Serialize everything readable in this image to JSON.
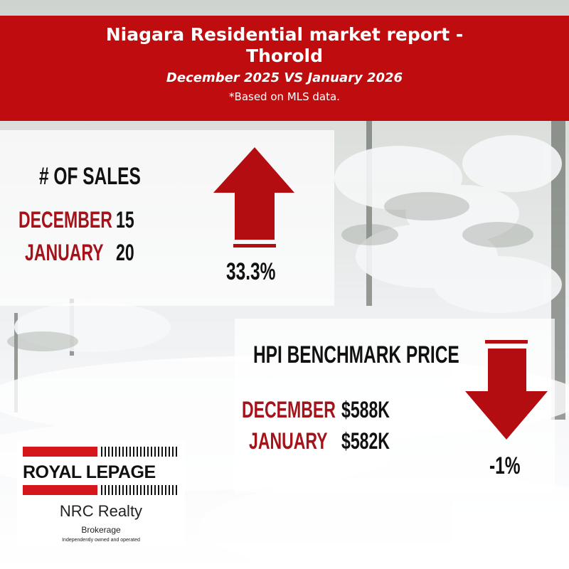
{
  "header": {
    "title_line1": "Niagara Residential market report -",
    "title_line2": "Thorold",
    "subtitle": "December 2025 VS January 2026",
    "note": "*Based on MLS data."
  },
  "sales": {
    "heading": "# OF SALES",
    "rows": [
      {
        "label": "DECEMBER",
        "value": "15"
      },
      {
        "label": "JANUARY",
        "value": "20"
      }
    ],
    "change": "33.3%",
    "direction": "up"
  },
  "hpi": {
    "heading": "HPI BENCHMARK PRICE",
    "rows": [
      {
        "label": "DECEMBER",
        "value": "$588K"
      },
      {
        "label": "JANUARY",
        "value": "$582K"
      }
    ],
    "change": "-1%",
    "direction": "down"
  },
  "brand": {
    "logo_text": "ROYAL LEPAGE",
    "office": "NRC Realty",
    "type": "Brokerage",
    "tagline": "Independently owned and operated"
  },
  "colors": {
    "header_red": "#bf0d0f",
    "label_red": "#a4121a",
    "arrow_red": "#b30d12"
  }
}
